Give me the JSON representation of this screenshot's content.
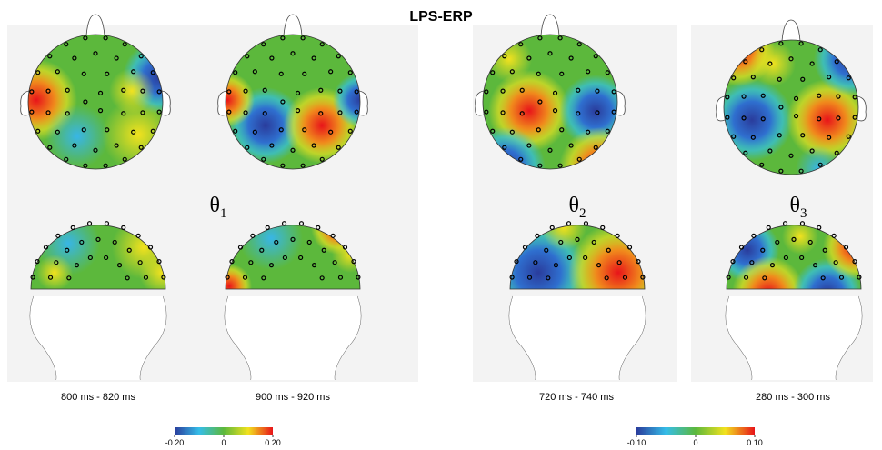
{
  "title": "LPS-ERP",
  "panels": [
    {
      "time": "800 ms - 820 ms"
    },
    {
      "time": "900 ms - 920 ms"
    },
    {
      "time": "720 ms - 740 ms"
    },
    {
      "time": "280 ms - 300 ms"
    }
  ],
  "thetas": [
    {
      "symbol": "θ",
      "index": "1"
    },
    {
      "symbol": "θ",
      "index": "2"
    },
    {
      "symbol": "θ",
      "index": "3"
    }
  ],
  "colorbars": [
    {
      "lim": [
        -0.2,
        0.2
      ],
      "ticks": [
        {
          "value": -0.2,
          "label": "-0.20"
        },
        0,
        {
          "value": 0.2,
          "label": "0.20"
        }
      ]
    },
    {
      "lim": [
        -0.1,
        0.1
      ],
      "ticks": [
        {
          "value": -0.1,
          "label": "-0.10"
        },
        0,
        {
          "value": 0.1,
          "label": "0.10"
        }
      ]
    }
  ]
}
